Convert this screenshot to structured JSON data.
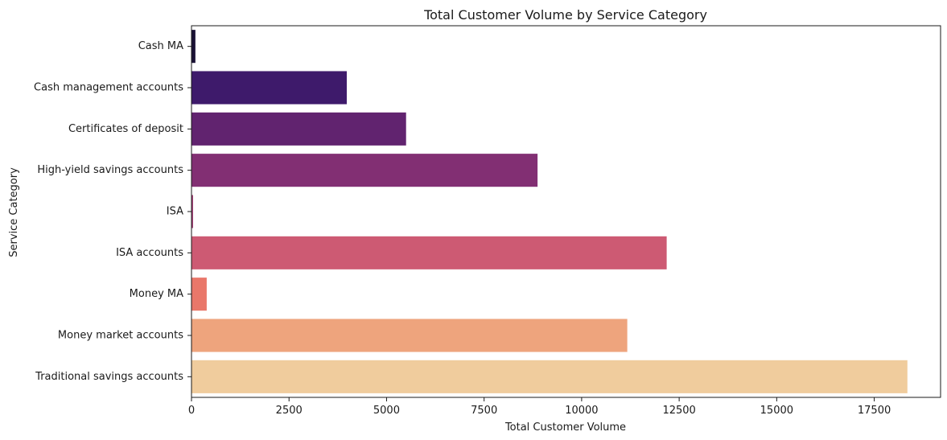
{
  "chart_data": {
    "type": "bar",
    "orientation": "horizontal",
    "title": "Total Customer Volume by Service Category",
    "xlabel": "Total Customer Volume",
    "ylabel": "Service Category",
    "xlim": [
      0,
      19200
    ],
    "xticks": [
      0,
      2500,
      5000,
      7500,
      10000,
      12500,
      15000,
      17500
    ],
    "xtick_labels": [
      "0",
      "2500",
      "5000",
      "7500",
      "10000",
      "12500",
      "15000",
      "17500"
    ],
    "grid": false,
    "categories": [
      "Cash MA",
      "Cash management accounts",
      "Certificates of deposit",
      "High-yield savings accounts",
      "ISA",
      "ISA accounts",
      "Money MA",
      "Money market accounts",
      "Traditional savings accounts"
    ],
    "values": [
      100,
      3980,
      5500,
      8870,
      40,
      12180,
      390,
      11170,
      18350
    ],
    "colors": [
      "#1a1135",
      "#3e1a6b",
      "#61236f",
      "#822f73",
      "#9e3a71",
      "#cd5a73",
      "#e9776a",
      "#eea47d",
      "#f0cc9d"
    ]
  }
}
